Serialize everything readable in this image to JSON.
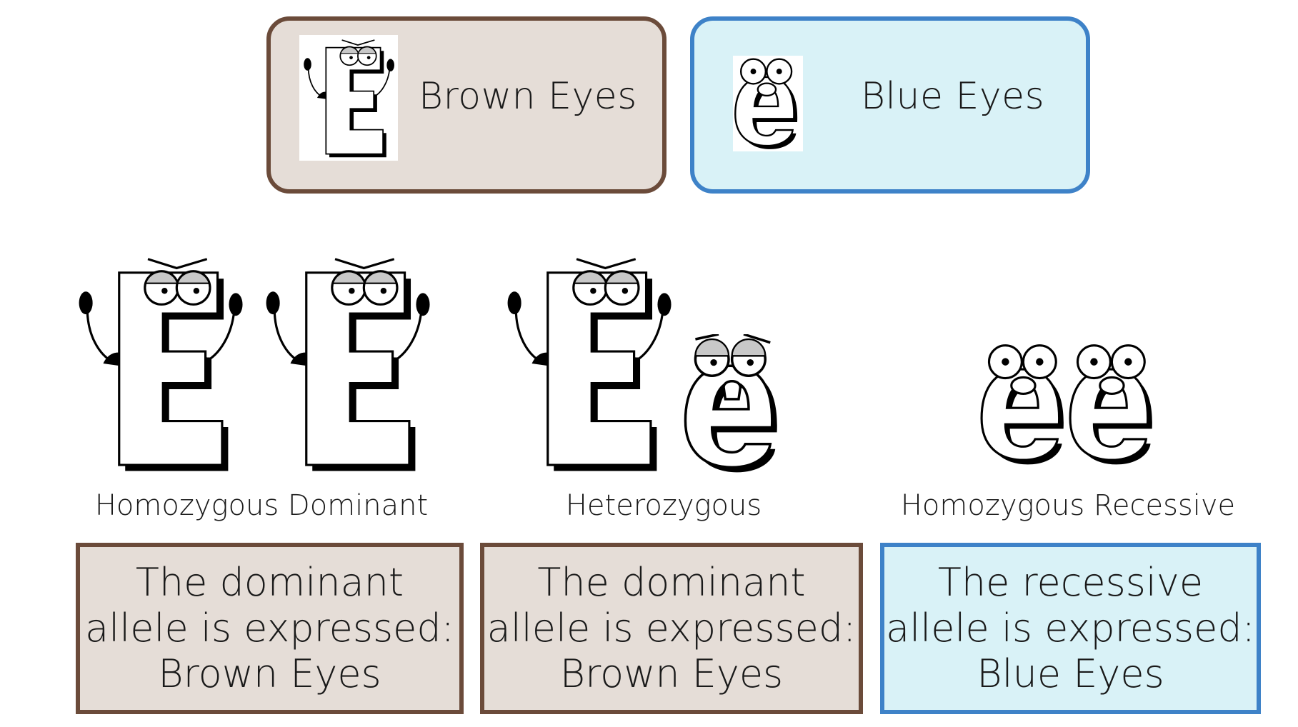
{
  "legend": {
    "dominant": {
      "label": "Brown Eyes",
      "icon": "big-E-character-icon",
      "color": "#6b4b3a",
      "fill": "#e5ddd7"
    },
    "recessive": {
      "label": "Blue Eyes",
      "icon": "small-e-character-icon",
      "color": "#3e82c8",
      "fill": "#d9f2f7"
    }
  },
  "genotypes": [
    {
      "label": "Homozygous Dominant",
      "characters": [
        "big-E-character-icon",
        "big-E-character-icon"
      ],
      "result": {
        "line1": "The dominant",
        "line2": "allele is expressed:",
        "line3": "Brown Eyes"
      }
    },
    {
      "label": "Heterozygous",
      "characters": [
        "big-E-character-icon",
        "small-e-character-icon"
      ],
      "result": {
        "line1": "The dominant",
        "line2": "allele is expressed:",
        "line3": "Brown Eyes"
      }
    },
    {
      "label": "Homozygous Recessive",
      "characters": [
        "small-e-character-icon",
        "small-e-character-icon"
      ],
      "result": {
        "line1": "The recessive",
        "line2": "allele is expressed:",
        "line3": "Blue Eyes"
      }
    }
  ]
}
